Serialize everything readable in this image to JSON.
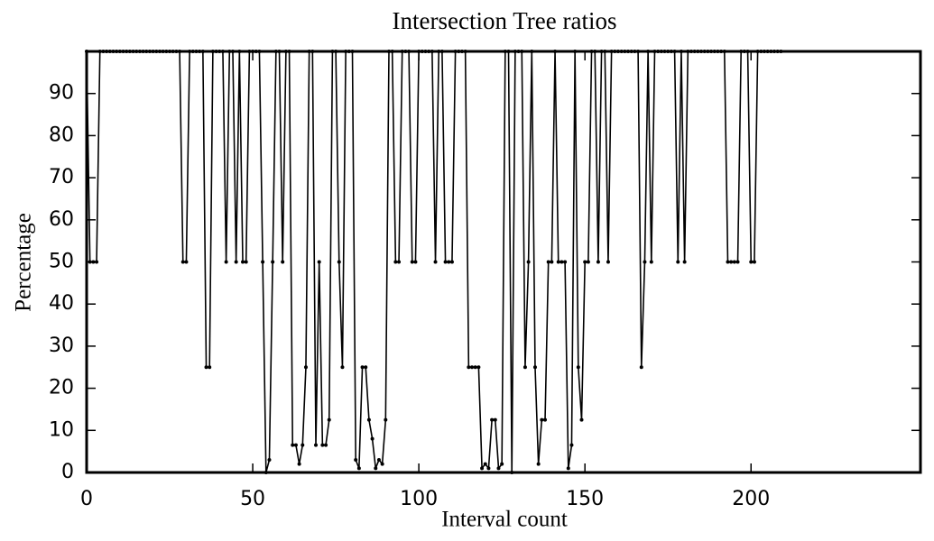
{
  "chart_data": {
    "type": "line",
    "title": "Intersection Tree ratios",
    "x_label": "Interval count",
    "y_label": "Percentage",
    "xlim": [
      0,
      251
    ],
    "ylim": [
      0,
      100
    ],
    "xticks": [
      0,
      50,
      100,
      150,
      200
    ],
    "yticks": [
      0,
      10,
      20,
      30,
      40,
      50,
      60,
      70,
      80,
      90
    ],
    "series": [
      {
        "color": "#000000",
        "x": [
          0,
          1,
          2,
          3,
          4,
          5,
          6,
          7,
          8,
          9,
          10,
          11,
          12,
          13,
          14,
          15,
          16,
          17,
          18,
          19,
          20,
          21,
          22,
          23,
          24,
          25,
          26,
          27,
          28,
          29,
          30,
          31,
          32,
          33,
          34,
          35,
          36,
          37,
          38,
          39,
          40,
          41,
          42,
          43,
          44,
          45,
          46,
          47,
          48,
          49,
          50,
          51,
          52,
          53,
          54,
          55,
          56,
          57,
          58,
          59,
          60,
          61,
          62,
          63,
          64,
          65,
          66,
          67,
          68,
          69,
          70,
          71,
          72,
          73,
          74,
          75,
          76,
          77,
          78,
          79,
          80,
          81,
          82,
          83,
          84,
          85,
          86,
          87,
          88,
          89,
          90,
          91,
          92,
          93,
          94,
          95,
          96,
          97,
          98,
          99,
          100,
          101,
          102,
          103,
          104,
          105,
          106,
          107,
          108,
          109,
          110,
          111,
          112,
          113,
          114,
          115,
          116,
          117,
          118,
          119,
          120,
          121,
          122,
          123,
          124,
          125,
          126,
          127,
          128,
          129,
          130,
          131,
          132,
          133,
          134,
          135,
          136,
          137,
          138,
          139,
          140,
          141,
          142,
          143,
          144,
          145,
          146,
          147,
          148,
          149,
          150,
          151,
          152,
          153,
          154,
          155,
          156,
          157,
          158,
          159,
          160,
          161,
          162,
          163,
          164,
          165,
          166,
          167,
          168,
          169,
          170,
          171,
          172,
          173,
          174,
          175,
          176,
          177,
          178,
          179,
          180,
          181,
          182,
          183,
          184,
          185,
          186,
          187,
          188,
          189,
          190,
          191,
          192,
          193,
          194,
          195,
          196,
          197,
          198,
          199,
          200,
          201,
          202,
          203,
          204,
          205,
          206,
          207,
          208,
          209
        ],
        "values": [
          100,
          50,
          50,
          50,
          100,
          100,
          100,
          100,
          100,
          100,
          100,
          100,
          100,
          100,
          100,
          100,
          100,
          100,
          100,
          100,
          100,
          100,
          100,
          100,
          100,
          100,
          100,
          100,
          100,
          50,
          50,
          100,
          100,
          100,
          100,
          100,
          25,
          25,
          100,
          100,
          100,
          100,
          50,
          100,
          100,
          50,
          100,
          50,
          50,
          100,
          100,
          100,
          100,
          50,
          0,
          3,
          50,
          100,
          100,
          50,
          100,
          100,
          6.5,
          6.5,
          2,
          6.5,
          25,
          100,
          100,
          6.5,
          50,
          6.5,
          6.5,
          12.5,
          100,
          100,
          50,
          25,
          100,
          100,
          100,
          3,
          1,
          25,
          25,
          12.5,
          8,
          1,
          3,
          2,
          12.5,
          100,
          100,
          50,
          50,
          100,
          100,
          100,
          50,
          50,
          100,
          100,
          100,
          100,
          100,
          50,
          100,
          100,
          50,
          50,
          50,
          100,
          100,
          100,
          100,
          25,
          25,
          25,
          25,
          1,
          2,
          1,
          12.5,
          12.5,
          1,
          2,
          100,
          100,
          0,
          100,
          100,
          100,
          25,
          50,
          100,
          25,
          2,
          12.5,
          12.5,
          50,
          50,
          100,
          50,
          50,
          50,
          1,
          6.5,
          100,
          25,
          12.5,
          50,
          50,
          100,
          100,
          50,
          100,
          100,
          50,
          100,
          100,
          100,
          100,
          100,
          100,
          100,
          100,
          100,
          25,
          50,
          100,
          50,
          100,
          100,
          100,
          100,
          100,
          100,
          100,
          50,
          100,
          50,
          100,
          100,
          100,
          100,
          100,
          100,
          100,
          100,
          100,
          100,
          100,
          100,
          50,
          50,
          50,
          50,
          100,
          100,
          100,
          50,
          50,
          100,
          100,
          100,
          100,
          100,
          100,
          100,
          100
        ]
      }
    ]
  }
}
